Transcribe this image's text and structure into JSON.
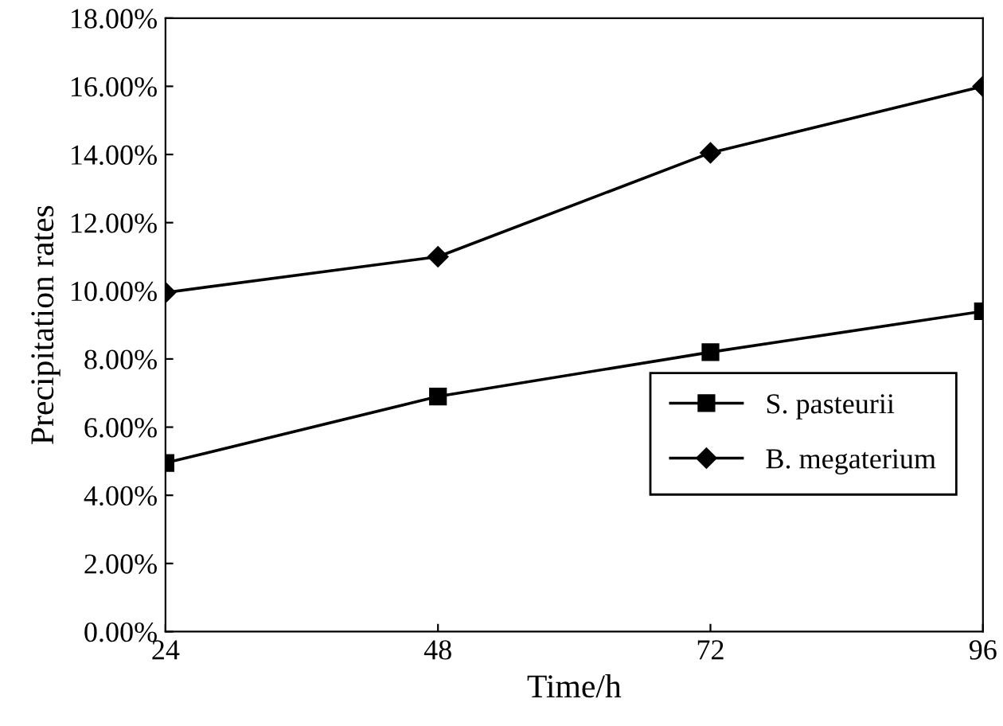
{
  "chart_data": {
    "type": "line",
    "xlabel": "Time/h",
    "ylabel": "Precipitation rates",
    "x": [
      24,
      48,
      72,
      96
    ],
    "series": [
      {
        "name": "S. pasteurii",
        "color": "#000000",
        "marker": "square",
        "values": [
          4.95,
          6.9,
          8.2,
          9.4
        ]
      },
      {
        "name": "B. megaterium",
        "color": "#000000",
        "marker": "diamond",
        "values": [
          9.95,
          11.0,
          14.05,
          16.0
        ]
      }
    ],
    "xlim": [
      24,
      96
    ],
    "xticks": [
      24,
      48,
      72,
      96
    ],
    "ylim": [
      0,
      18
    ],
    "yticks": [
      {
        "value": 0,
        "label": "0.00%"
      },
      {
        "value": 2,
        "label": "2.00%"
      },
      {
        "value": 4,
        "label": "4.00%"
      },
      {
        "value": 6,
        "label": "6.00%"
      },
      {
        "value": 8,
        "label": "8.00%"
      },
      {
        "value": 10,
        "label": "10.00%"
      },
      {
        "value": 12,
        "label": "12.00%"
      },
      {
        "value": 14,
        "label": "14.00%"
      },
      {
        "value": 16,
        "label": "16.00%"
      },
      {
        "value": 18,
        "label": "18.00%"
      }
    ],
    "grid": false,
    "legend": "bottom right",
    "line_style": "solid"
  }
}
